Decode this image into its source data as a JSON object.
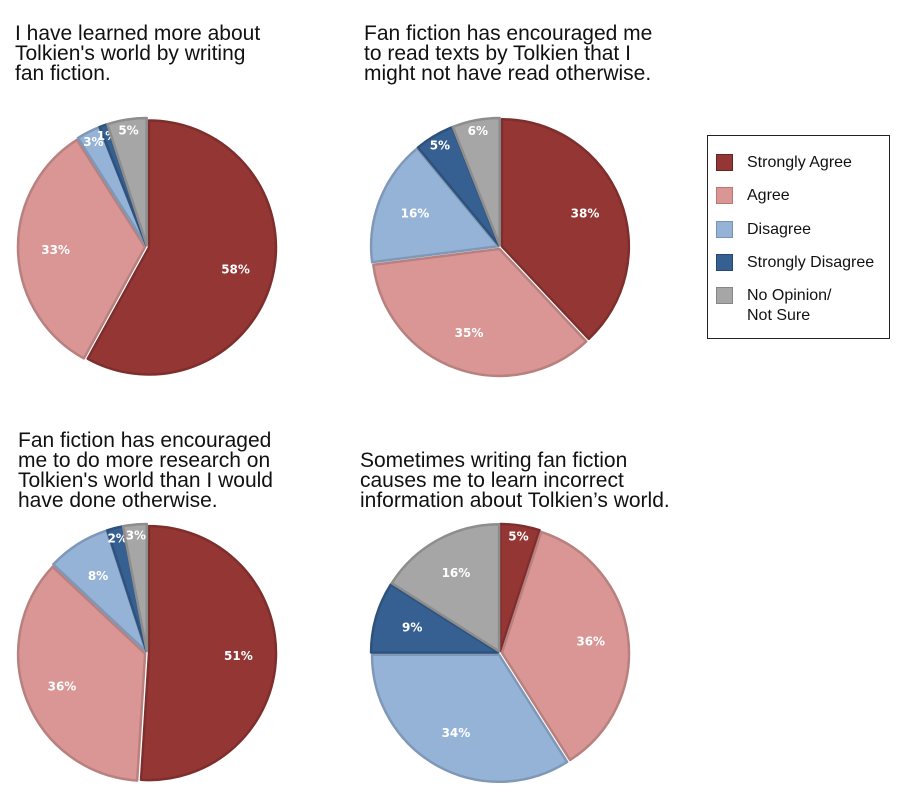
{
  "colors": {
    "Strongly Agree": "#943634",
    "Agree": "#d99694",
    "Disagree": "#95b3d7",
    "Strongly Disagree": "#366092",
    "No Opinion/ Not Sure": "#a6a6a6"
  },
  "legend": {
    "items": [
      {
        "label": "Strongly Agree",
        "lines": [
          "Strongly Agree"
        ]
      },
      {
        "label": "Agree",
        "lines": [
          "Agree"
        ]
      },
      {
        "label": "Disagree",
        "lines": [
          "Disagree"
        ]
      },
      {
        "label": "Strongly Disagree",
        "lines": [
          "Strongly Disagree"
        ]
      },
      {
        "label": "No Opinion/ Not Sure",
        "lines": [
          "No Opinion/",
          "Not Sure"
        ]
      }
    ]
  },
  "chart_data": [
    {
      "type": "pie",
      "title": "I have learned more about Tolkien's world by writing fan fiction.",
      "title_lines": [
        "I have learned more about",
        "Tolkien's world by writing",
        "fan fiction."
      ],
      "categories": [
        "Strongly Agree",
        "Agree",
        "Disagree",
        "Strongly Disagree",
        "No Opinion/ Not Sure"
      ],
      "values": [
        58,
        33,
        3,
        1,
        5
      ],
      "labels": [
        "58%",
        "33%",
        "3%",
        "1%",
        "5%"
      ],
      "legend": "right"
    },
    {
      "type": "pie",
      "title": "Fan fiction has encouraged me to read texts by Tolkien that I might not have read otherwise.",
      "title_lines": [
        "Fan fiction has encouraged me",
        "to read texts by Tolkien that I",
        "might not have read otherwise."
      ],
      "categories": [
        "Strongly Agree",
        "Agree",
        "Disagree",
        "Strongly Disagree",
        "No Opinion/ Not Sure"
      ],
      "values": [
        38,
        35,
        16,
        5,
        6
      ],
      "labels": [
        "38%",
        "35%",
        "16%",
        "5%",
        "6%"
      ],
      "legend": "right"
    },
    {
      "type": "pie",
      "title": "Fan fiction has encouraged me to do more research on Tolkien's world than I would have done otherwise.",
      "title_lines": [
        "Fan fiction has encouraged",
        "me to do more research on",
        "Tolkien's world than I would",
        "have done otherwise."
      ],
      "categories": [
        "Strongly Agree",
        "Agree",
        "Disagree",
        "Strongly Disagree",
        "No Opinion/ Not Sure"
      ],
      "values": [
        51,
        36,
        8,
        2,
        3
      ],
      "labels": [
        "51%",
        "36%",
        "8%",
        "2%",
        "3%"
      ],
      "legend": "right"
    },
    {
      "type": "pie",
      "title": "Sometimes writing fan fiction causes me to learn incorrect information about Tolkien’s world.",
      "title_lines": [
        "Sometimes writing fan fiction",
        "causes me to learn incorrect",
        "information about Tolkien’s world."
      ],
      "categories": [
        "Strongly Agree",
        "Agree",
        "Disagree",
        "Strongly Disagree",
        "No Opinion/ Not Sure"
      ],
      "values": [
        5,
        36,
        34,
        9,
        16
      ],
      "labels": [
        "5%",
        "36%",
        "34%",
        "9%",
        "16%"
      ],
      "legend": "right"
    }
  ]
}
